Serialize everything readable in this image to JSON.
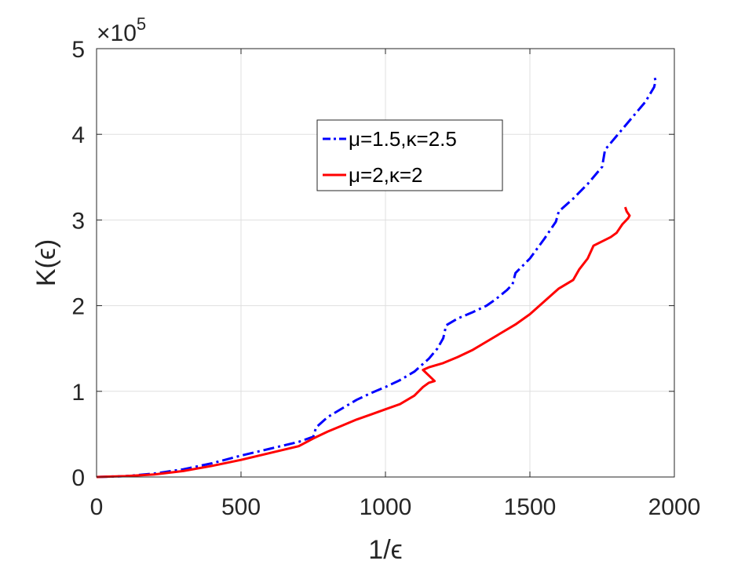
{
  "chart_data": {
    "type": "line",
    "xlabel": "1/ϵ",
    "ylabel": "K(ϵ)",
    "y_exponent_label": "×10",
    "y_exponent_power": "5",
    "xlim": [
      0,
      2000
    ],
    "ylim": [
      0,
      5
    ],
    "x_ticks": [
      0,
      500,
      1000,
      1500,
      2000
    ],
    "y_ticks": [
      0,
      1,
      2,
      3,
      4,
      5
    ],
    "x_tick_labels": [
      "0",
      "500",
      "1000",
      "1500",
      "2000"
    ],
    "y_tick_labels": [
      "0",
      "1",
      "2",
      "3",
      "4",
      "5"
    ],
    "grid": true,
    "legend_position": "upper-center",
    "series": [
      {
        "name": "μ=1.5,κ=2.5",
        "color": "#0000ff",
        "style": "dash-dot",
        "x": [
          0,
          100,
          200,
          300,
          400,
          500,
          600,
          700,
          750,
          760,
          800,
          850,
          900,
          950,
          1000,
          1050,
          1100,
          1150,
          1180,
          1200,
          1210,
          1250,
          1300,
          1350,
          1380,
          1420,
          1440,
          1450,
          1500,
          1550,
          1590,
          1600,
          1650,
          1700,
          1750,
          1760,
          1800,
          1850,
          1900,
          1930,
          1935,
          1930
        ],
        "y": [
          0,
          0.01,
          0.04,
          0.09,
          0.16,
          0.25,
          0.33,
          0.41,
          0.47,
          0.58,
          0.7,
          0.8,
          0.9,
          0.98,
          1.05,
          1.13,
          1.23,
          1.38,
          1.5,
          1.62,
          1.77,
          1.85,
          1.92,
          2.0,
          2.07,
          2.18,
          2.25,
          2.38,
          2.55,
          2.78,
          2.98,
          3.1,
          3.25,
          3.42,
          3.62,
          3.82,
          3.98,
          4.18,
          4.38,
          4.55,
          4.62,
          4.7
        ]
      },
      {
        "name": "μ=2,κ=2",
        "color": "#ff0000",
        "style": "solid",
        "x": [
          0,
          100,
          200,
          300,
          400,
          500,
          600,
          700,
          750,
          800,
          850,
          900,
          950,
          1000,
          1050,
          1100,
          1130,
          1150,
          1170,
          1130,
          1150,
          1200,
          1250,
          1300,
          1350,
          1400,
          1450,
          1500,
          1550,
          1600,
          1650,
          1670,
          1700,
          1720,
          1750,
          1780,
          1800,
          1820,
          1840,
          1845,
          1835,
          1830
        ],
        "y": [
          0,
          0.01,
          0.03,
          0.07,
          0.13,
          0.2,
          0.28,
          0.36,
          0.45,
          0.53,
          0.6,
          0.67,
          0.73,
          0.79,
          0.85,
          0.95,
          1.05,
          1.1,
          1.12,
          1.25,
          1.28,
          1.33,
          1.4,
          1.48,
          1.58,
          1.68,
          1.78,
          1.9,
          2.05,
          2.2,
          2.3,
          2.42,
          2.55,
          2.7,
          2.75,
          2.8,
          2.85,
          2.95,
          3.02,
          3.05,
          3.1,
          3.15
        ]
      }
    ]
  }
}
